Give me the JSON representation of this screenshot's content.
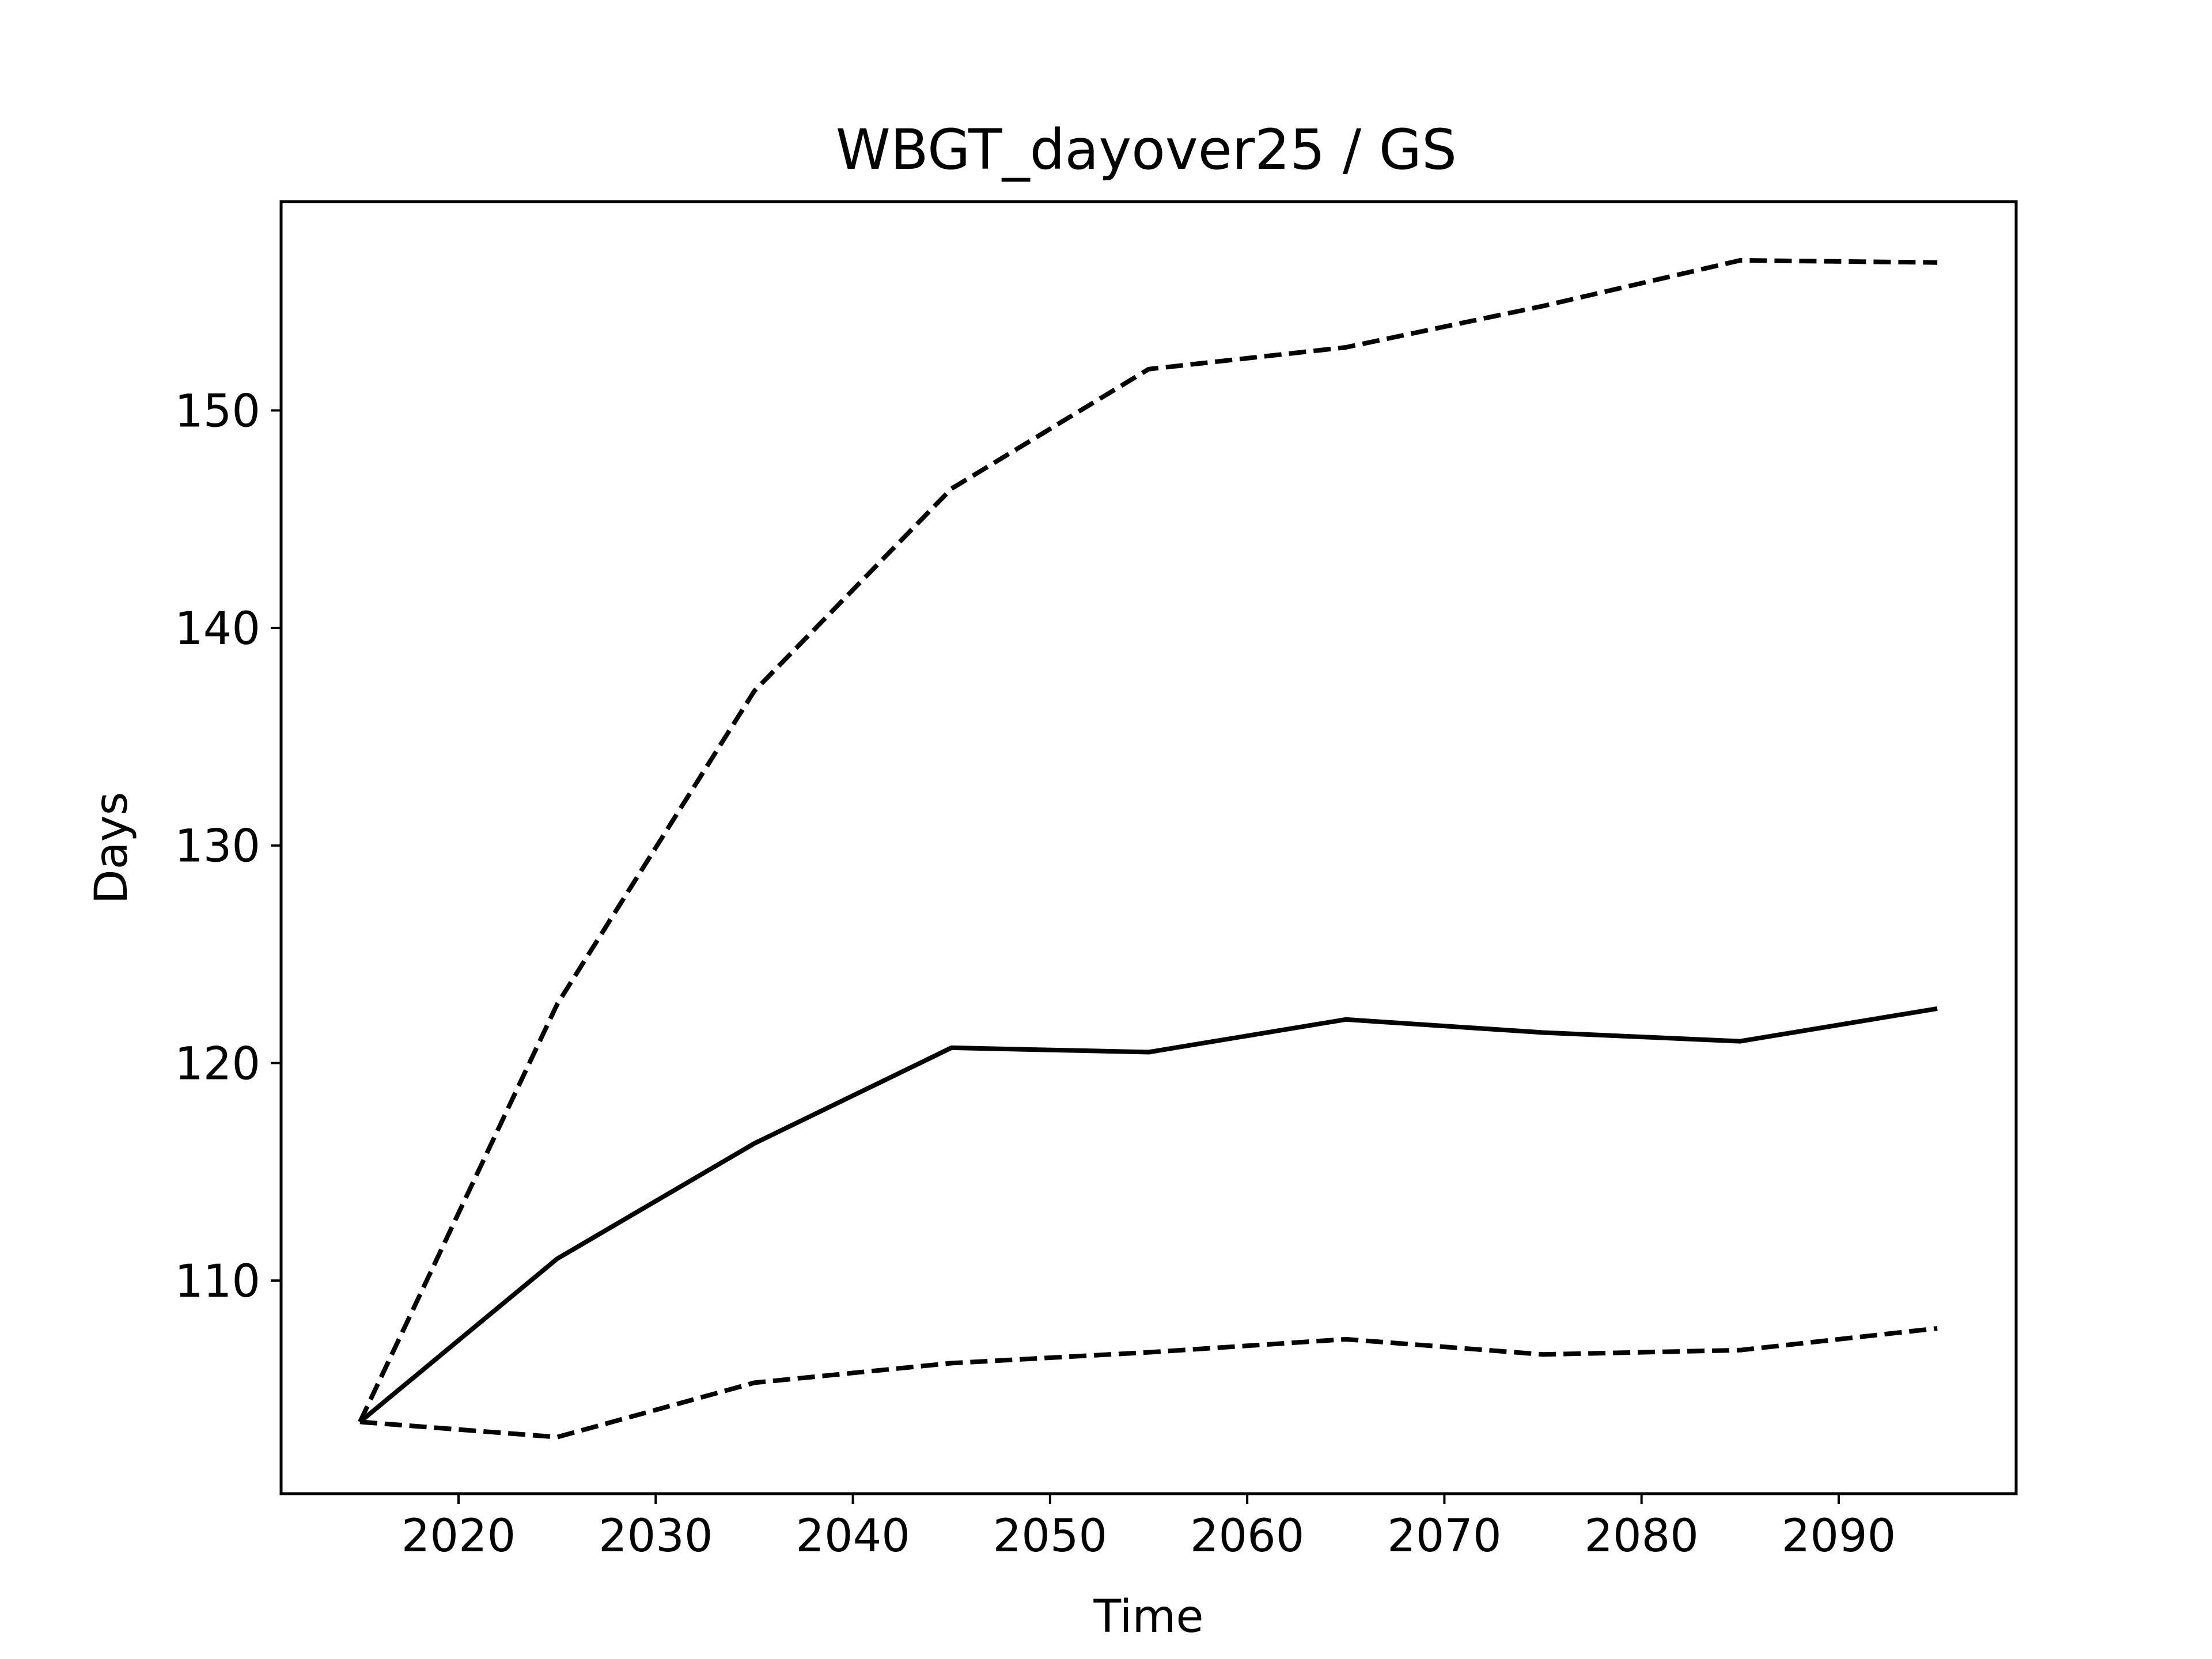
{
  "chart_data": {
    "type": "line",
    "title": "WBGT_dayover25 / GS",
    "xlabel": "Time",
    "ylabel": "Days",
    "xlim": [
      2011,
      2099
    ],
    "ylim": [
      100.2,
      159.6
    ],
    "xticks": [
      2020,
      2030,
      2040,
      2050,
      2060,
      2070,
      2080,
      2090
    ],
    "yticks": [
      110,
      120,
      130,
      140,
      150
    ],
    "grid": false,
    "legend": "none",
    "x": [
      2015,
      2025,
      2035,
      2045,
      2055,
      2065,
      2075,
      2085,
      2095
    ],
    "series": [
      {
        "style": "solid",
        "color": "#000000",
        "values": [
          103.5,
          111.0,
          116.3,
          120.7,
          120.5,
          122.0,
          121.4,
          121.0,
          122.5
        ]
      },
      {
        "style": "dashed",
        "color": "#000000",
        "values": [
          103.5,
          122.7,
          137.1,
          146.4,
          151.9,
          152.9,
          154.8,
          156.9,
          156.8
        ]
      },
      {
        "style": "dashed",
        "color": "#000000",
        "values": [
          103.5,
          102.8,
          105.3,
          106.2,
          106.7,
          107.3,
          106.6,
          106.8,
          107.8
        ]
      }
    ]
  }
}
